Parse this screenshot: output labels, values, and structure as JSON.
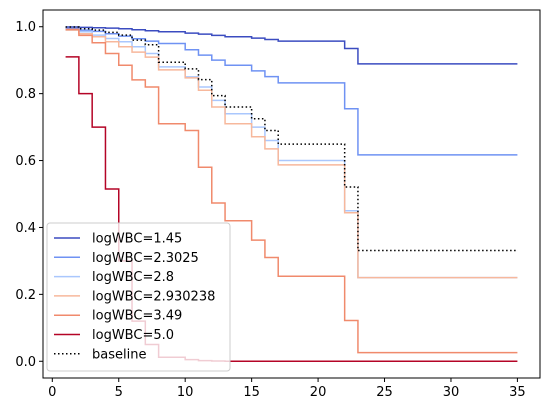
{
  "chart_data": {
    "type": "line",
    "step": "post",
    "title": "",
    "xlabel": "",
    "ylabel": "",
    "xlim": [
      -0.7,
      36.7
    ],
    "ylim": [
      -0.05,
      1.05
    ],
    "xticks": [
      0,
      5,
      10,
      15,
      20,
      25,
      30,
      35
    ],
    "yticks": [
      0.0,
      0.2,
      0.4,
      0.6,
      0.8,
      1.0
    ],
    "xtick_labels": [
      "0",
      "5",
      "10",
      "15",
      "20",
      "25",
      "30",
      "35"
    ],
    "ytick_labels": [
      "0.0",
      "0.2",
      "0.4",
      "0.6",
      "0.8",
      "1.0"
    ],
    "grid": false,
    "legend_position": "lower-left",
    "x": [
      1,
      2,
      3,
      4,
      5,
      6,
      7,
      8,
      10,
      11,
      12,
      13,
      15,
      16,
      17,
      22,
      23,
      35
    ],
    "series": [
      {
        "name": "logWBC=1.45",
        "color": "#3b4cc0",
        "style": "solid",
        "values": [
          0.999,
          0.998,
          0.997,
          0.996,
          0.994,
          0.991,
          0.988,
          0.985,
          0.981,
          0.978,
          0.974,
          0.97,
          0.966,
          0.962,
          0.957,
          0.935,
          0.889,
          0.889
        ]
      },
      {
        "name": "logWBC=2.3025",
        "color": "#6f92f3",
        "style": "solid",
        "values": [
          0.995,
          0.99,
          0.986,
          0.979,
          0.972,
          0.964,
          0.957,
          0.95,
          0.931,
          0.915,
          0.9,
          0.885,
          0.868,
          0.851,
          0.832,
          0.755,
          0.617,
          0.617
        ]
      },
      {
        "name": "logWBC=2.8",
        "color": "#aac7fd",
        "style": "solid",
        "values": [
          0.99,
          0.985,
          0.975,
          0.965,
          0.955,
          0.94,
          0.92,
          0.88,
          0.85,
          0.82,
          0.78,
          0.74,
          0.7,
          0.66,
          0.6,
          0.45,
          0.25,
          0.25
        ]
      },
      {
        "name": "logWBC=2.930238",
        "color": "#f7b89c",
        "style": "solid",
        "values": [
          0.99,
          0.979,
          0.97,
          0.955,
          0.94,
          0.924,
          0.909,
          0.871,
          0.847,
          0.81,
          0.76,
          0.71,
          0.671,
          0.635,
          0.587,
          0.444,
          0.25,
          0.25
        ]
      },
      {
        "name": "logWBC=3.49",
        "color": "#f08a6c",
        "style": "solid",
        "values": [
          0.992,
          0.974,
          0.952,
          0.92,
          0.885,
          0.841,
          0.82,
          0.71,
          0.69,
          0.58,
          0.473,
          0.42,
          0.362,
          0.31,
          0.254,
          0.122,
          0.026,
          0.026
        ]
      },
      {
        "name": "logWBC=5.0",
        "color": "#b40426",
        "style": "solid",
        "values": [
          0.91,
          0.8,
          0.7,
          0.515,
          0.3,
          0.12,
          0.05,
          0.012,
          0.005,
          0.002,
          0.001,
          0.0,
          0.0,
          0.0,
          0.0,
          0.0,
          0.0,
          0.0
        ]
      },
      {
        "name": "baseline",
        "color": "#000000",
        "style": "dotted",
        "values": [
          0.999,
          0.994,
          0.99,
          0.983,
          0.975,
          0.96,
          0.946,
          0.894,
          0.874,
          0.842,
          0.794,
          0.76,
          0.725,
          0.69,
          0.649,
          0.521,
          0.331,
          0.331
        ]
      }
    ]
  }
}
